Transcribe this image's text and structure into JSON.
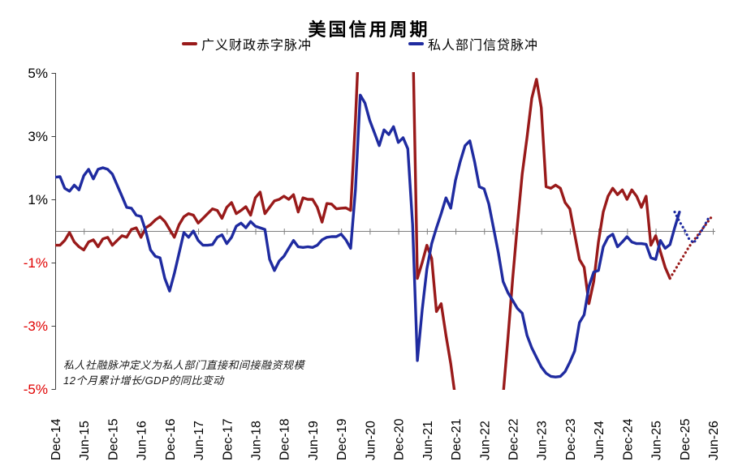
{
  "header": {
    "title": "美国信用周期"
  },
  "legend": {
    "items": [
      {
        "label": "广义财政赤字脉冲",
        "color": "#991A1A"
      },
      {
        "label": "私人部门信贷脉冲",
        "color": "#1F2BA0"
      }
    ]
  },
  "footnote": {
    "line1": "私人社融脉冲定义为私人部门直接和间接融资规模",
    "line2": "12个月累计增长/GDP的同比变动"
  },
  "chart_data": {
    "type": "line",
    "title": "美国信用周期",
    "xlabel": "",
    "ylabel": "",
    "x_start_month": "Dec-14",
    "x_end_month": "Jun-26",
    "months_per_index": 1,
    "tick_every": 6,
    "x_tick_labels": [
      "Dec-14",
      "Jun-15",
      "Dec-15",
      "Jun-16",
      "Dec-16",
      "Jun-17",
      "Dec-17",
      "Jun-18",
      "Dec-18",
      "Jun-19",
      "Dec-19",
      "Jun-20",
      "Dec-20",
      "Jun-21",
      "Dec-21",
      "Jun-22",
      "Dec-22",
      "Jun-23",
      "Dec-23",
      "Jun-24",
      "Dec-24",
      "Jun-25",
      "Dec-25",
      "Jun-26"
    ],
    "ylim": [
      -5,
      5
    ],
    "y_tick_values": [
      5,
      3,
      1,
      -1,
      -3,
      -5
    ],
    "y_tick_labels": [
      "5%",
      "3%",
      "1%",
      "-1%",
      "-3%",
      "-5%"
    ],
    "y_tick_positive_color": "#000000",
    "y_tick_negative_color": "#E00000",
    "grid": false,
    "legend_position": "top-center",
    "clip_note": "values beyond +/-5 are off-scale and drawn clipped at the plot edge",
    "series": [
      {
        "name": "广义财政赤字脉冲",
        "segment": "actual",
        "color": "#991A1A",
        "style": "solid",
        "start_index": 0,
        "values": [
          -0.45,
          -0.45,
          -0.3,
          -0.05,
          -0.35,
          -0.5,
          -0.6,
          -0.35,
          -0.28,
          -0.5,
          -0.25,
          -0.2,
          -0.45,
          -0.3,
          -0.15,
          -0.2,
          0.05,
          0.1,
          -0.2,
          0.1,
          0.2,
          0.35,
          0.45,
          0.3,
          0.05,
          -0.2,
          0.2,
          0.45,
          0.55,
          0.5,
          0.25,
          0.4,
          0.55,
          0.7,
          0.65,
          0.4,
          0.75,
          0.9,
          0.55,
          0.65,
          0.77,
          0.5,
          1.05,
          1.23,
          0.55,
          0.75,
          0.95,
          1.0,
          1.1,
          1.0,
          1.15,
          0.6,
          1.05,
          1.0,
          1.0,
          0.75,
          0.28,
          0.87,
          0.85,
          0.7,
          0.72,
          0.73,
          0.65,
          3.5,
          7,
          7,
          7,
          7,
          7,
          7,
          7,
          7,
          7,
          7,
          7,
          6.5,
          -1.5,
          -1.0,
          -0.45,
          -0.87,
          -2.55,
          -2.3,
          -3.3,
          -4.2,
          -5.3,
          -7,
          -7,
          -7,
          -7,
          -7,
          -7,
          -7,
          -7,
          -7,
          -5.2,
          -3.4,
          -1.5,
          0.2,
          1.8,
          2.95,
          4.2,
          4.8,
          3.9,
          1.4,
          1.35,
          1.45,
          1.35,
          0.9,
          0.7,
          -0.1,
          -0.9,
          -1.15,
          -2.3,
          -1.6,
          -0.35,
          0.6,
          1.1,
          1.35,
          1.15,
          1.3,
          1.0,
          1.3,
          1.1,
          0.75,
          1.1,
          -0.45,
          -0.15,
          -0.65,
          -1.15,
          -1.5
        ]
      },
      {
        "name": "广义财政赤字脉冲",
        "segment": "forecast",
        "color": "#991A1A",
        "style": "dotted",
        "start_index": 129,
        "values": [
          -1.5,
          -1.25,
          -1.0,
          -0.75,
          -0.5,
          -0.3,
          -0.1,
          0.1,
          0.3,
          0.5
        ]
      },
      {
        "name": "私人部门信贷脉冲",
        "segment": "actual",
        "color": "#1F2BA0",
        "style": "solid",
        "start_index": 0,
        "values": [
          1.7,
          1.72,
          1.35,
          1.26,
          1.45,
          1.3,
          1.75,
          1.95,
          1.65,
          1.95,
          2.0,
          1.95,
          1.8,
          1.45,
          1.1,
          0.75,
          0.72,
          0.5,
          0.46,
          0.0,
          -0.6,
          -0.8,
          -0.85,
          -1.5,
          -1.9,
          -1.35,
          -0.7,
          -0.05,
          -0.2,
          0.0,
          -0.3,
          -0.45,
          -0.45,
          -0.43,
          -0.2,
          -0.12,
          -0.4,
          -0.2,
          0.15,
          0.25,
          0.1,
          0.3,
          0.15,
          0.1,
          0.05,
          -0.9,
          -1.25,
          -0.95,
          -0.8,
          -0.55,
          -0.3,
          -0.5,
          -0.52,
          -0.5,
          -0.52,
          -0.45,
          -0.28,
          -0.2,
          -0.18,
          -0.18,
          -0.1,
          -0.28,
          -0.55,
          1.3,
          4.3,
          4.05,
          3.5,
          3.1,
          2.7,
          3.2,
          3.05,
          3.3,
          2.8,
          2.95,
          2.6,
          0.2,
          -4.1,
          -2.5,
          -1.2,
          -0.4,
          0.1,
          0.55,
          1.05,
          0.72,
          1.6,
          2.2,
          2.7,
          2.85,
          2.2,
          1.4,
          1.33,
          0.85,
          0.08,
          -0.7,
          -1.6,
          -1.95,
          -2.2,
          -2.45,
          -2.6,
          -3.3,
          -3.7,
          -4.0,
          -4.3,
          -4.5,
          -4.6,
          -4.62,
          -4.6,
          -4.45,
          -4.15,
          -3.8,
          -2.9,
          -2.65,
          -1.75,
          -1.3,
          -1.25,
          -0.5,
          -0.2,
          -0.1,
          -0.5,
          -0.35,
          -0.18,
          -0.35,
          -0.4,
          -0.4,
          -0.42,
          -0.85,
          -0.9,
          -0.3,
          -0.55,
          -0.43,
          0.1,
          0.6
        ]
      },
      {
        "name": "私人部门信贷脉冲",
        "segment": "forecast",
        "color": "#1F2BA0",
        "style": "dotted",
        "start_index": 130,
        "values": [
          0.6,
          0.3,
          0.05,
          -0.25,
          -0.38,
          -0.15,
          0.1,
          0.38
        ]
      }
    ]
  }
}
